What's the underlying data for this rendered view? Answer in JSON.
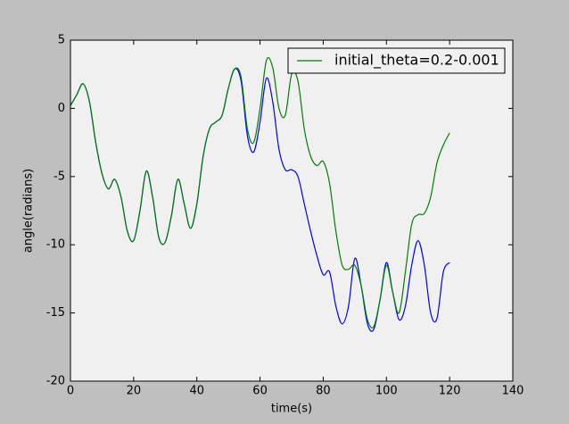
{
  "chart_data": {
    "type": "line",
    "x_label": "time(s)",
    "y_label": "angle(radians)",
    "x": [
      0,
      2,
      4,
      6,
      8,
      10,
      12,
      14,
      16,
      18,
      20,
      22,
      24,
      26,
      28,
      30,
      32,
      34,
      36,
      38,
      40,
      42,
      44,
      46,
      48,
      50,
      52,
      54,
      56,
      58,
      60,
      62,
      64,
      66,
      68,
      70,
      72,
      74,
      76,
      78,
      80,
      82,
      84,
      86,
      88,
      90,
      92,
      94,
      96,
      98,
      100,
      102,
      104,
      106,
      108,
      110,
      112,
      114,
      116,
      118,
      120
    ],
    "series": [
      {
        "color": "#0000ff",
        "values": [
          0.2,
          1.0,
          1.8,
          0.5,
          -2.5,
          -4.8,
          -5.9,
          -5.2,
          -6.5,
          -9.0,
          -9.7,
          -7.5,
          -4.6,
          -6.5,
          -9.5,
          -9.8,
          -7.8,
          -5.2,
          -7.0,
          -8.8,
          -7.0,
          -3.5,
          -1.5,
          -1.0,
          -0.5,
          1.5,
          2.9,
          2.0,
          -2.0,
          -3.2,
          -1.0,
          2.2,
          0.5,
          -3.0,
          -4.5,
          -4.5,
          -5.0,
          -7.0,
          -9.0,
          -10.8,
          -12.2,
          -12.0,
          -14.5,
          -15.8,
          -14.5,
          -11.0,
          -13.0,
          -15.8,
          -16.2,
          -14.0,
          -11.3,
          -13.5,
          -15.5,
          -14.5,
          -11.5,
          -9.7,
          -11.5,
          -15.0,
          -15.4,
          -12.0,
          -11.3
        ]
      },
      {
        "name": "initial_theta=0.2-0.001",
        "color": "#008000",
        "values": [
          0.2,
          1.0,
          1.8,
          0.5,
          -2.5,
          -4.8,
          -5.9,
          -5.2,
          -6.5,
          -9.0,
          -9.7,
          -7.5,
          -4.6,
          -6.5,
          -9.5,
          -9.8,
          -7.8,
          -5.2,
          -7.0,
          -8.8,
          -7.0,
          -3.5,
          -1.5,
          -1.0,
          -0.5,
          1.5,
          2.9,
          2.3,
          -1.5,
          -2.5,
          0,
          3.5,
          3.0,
          0.0,
          -0.5,
          2.5,
          2.0,
          -1.5,
          -3.5,
          -4.2,
          -3.9,
          -5.5,
          -9.0,
          -11.5,
          -11.8,
          -11.5,
          -13.0,
          -15.5,
          -16.0,
          -14.0,
          -11.5,
          -13.5,
          -15.0,
          -12.0,
          -8.5,
          -7.8,
          -7.7,
          -6.5,
          -4.0,
          -2.7,
          -1.8
        ]
      }
    ],
    "xlim": [
      0,
      140
    ],
    "xticks": [
      0,
      20,
      40,
      60,
      80,
      100,
      120,
      140
    ],
    "ylim": [
      -20,
      5
    ],
    "yticks": [
      -20,
      -15,
      -10,
      -5,
      0,
      5
    ],
    "legend": "upper right"
  }
}
